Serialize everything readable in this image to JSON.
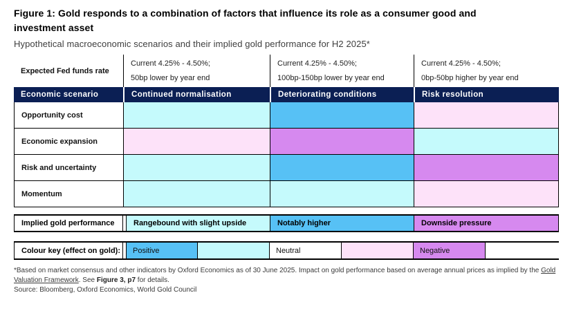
{
  "figure": {
    "title": "Figure 1: Gold responds to a combination of factors that influence its role as a consumer good and investment asset",
    "subtitle": "Hypothetical macroeconomic scenarios and their implied gold performance for H2 2025*"
  },
  "colors": {
    "navy": "#0b1f54",
    "blue": "#57c1f5",
    "cyan": "#c5fafc",
    "pink": "#fde2f9",
    "purple": "#d689ef",
    "white": "#ffffff"
  },
  "table": {
    "fed_row": {
      "label": "Expected Fed funds rate",
      "columns": [
        {
          "line1": "Current 4.25% - 4.50%;",
          "line2": "50bp lower by year end"
        },
        {
          "line1": "Current 4.25% - 4.50%;",
          "line2": "100bp-150bp lower by year end"
        },
        {
          "line1": "Current 4.25% - 4.50%;",
          "line2": "0bp-50bp higher by year end"
        }
      ]
    },
    "scenario_header": {
      "label": "Economic scenario",
      "columns": [
        "Continued normalisation",
        "Deteriorating conditions",
        "Risk resolution"
      ]
    },
    "factor_rows": [
      {
        "label": "Opportunity cost",
        "cells": [
          "cyan",
          "blue",
          "pink"
        ]
      },
      {
        "label": "Economic expansion",
        "cells": [
          "pink",
          "purple",
          "cyan"
        ]
      },
      {
        "label": "Risk and uncertainty",
        "cells": [
          "cyan",
          "blue",
          "purple"
        ]
      },
      {
        "label": "Momentum",
        "cells": [
          "cyan",
          "cyan",
          "pink"
        ]
      }
    ],
    "implied_row": {
      "label": "Implied gold performance",
      "cells": [
        {
          "text": "Rangebound with slight upside",
          "color": "cyan"
        },
        {
          "text": "Notably higher",
          "color": "blue"
        },
        {
          "text": "Downside pressure",
          "color": "purple"
        }
      ]
    },
    "colour_key": {
      "label": "Colour key (effect on gold):",
      "cells": [
        {
          "text": "Positive",
          "color": "blue"
        },
        {
          "text": "",
          "color": "cyan"
        },
        {
          "text": "Neutral",
          "color": "white"
        },
        {
          "text": "",
          "color": "pink"
        },
        {
          "text": "Negative",
          "color": "purple"
        }
      ]
    }
  },
  "footnote": {
    "part1": "*Based on market consensus and other indicators by Oxford Economics as of 30 June 2025. Impact on gold performance based on average annual prices as implied by the ",
    "link": "Gold Valuation Framework",
    "part2": ". See ",
    "bold": "Figure 3, p7",
    "part3": " for details.",
    "source": "Source: Bloomberg, Oxford Economics, World Gold Council"
  },
  "chart_data": {
    "type": "table",
    "title": "Figure 1: Gold responds to a combination of factors that influence its role as a consumer good and investment asset",
    "subtitle": "Hypothetical macroeconomic scenarios and their implied gold performance for H2 2025*",
    "scenarios": [
      "Continued normalisation",
      "Deteriorating conditions",
      "Risk resolution"
    ],
    "fed_funds_rate": [
      "Current 4.25% - 4.50%; 50bp lower by year end",
      "Current 4.25% - 4.50%; 100bp-150bp lower by year end",
      "Current 4.25% - 4.50%; 0bp-50bp higher by year end"
    ],
    "factors": [
      {
        "factor": "Opportunity cost",
        "effects": [
          "slightly positive",
          "positive",
          "slightly negative"
        ]
      },
      {
        "factor": "Economic expansion",
        "effects": [
          "slightly negative",
          "negative",
          "slightly positive"
        ]
      },
      {
        "factor": "Risk and uncertainty",
        "effects": [
          "slightly positive",
          "positive",
          "negative"
        ]
      },
      {
        "factor": "Momentum",
        "effects": [
          "slightly positive",
          "slightly positive",
          "slightly negative"
        ]
      }
    ],
    "implied_gold_performance": [
      "Rangebound with slight upside",
      "Notably higher",
      "Downside pressure"
    ],
    "legend": {
      "blue": "Positive",
      "cyan": "slightly positive",
      "white": "Neutral",
      "pink": "slightly negative",
      "purple": "Negative"
    },
    "legend_position": "bottom"
  }
}
